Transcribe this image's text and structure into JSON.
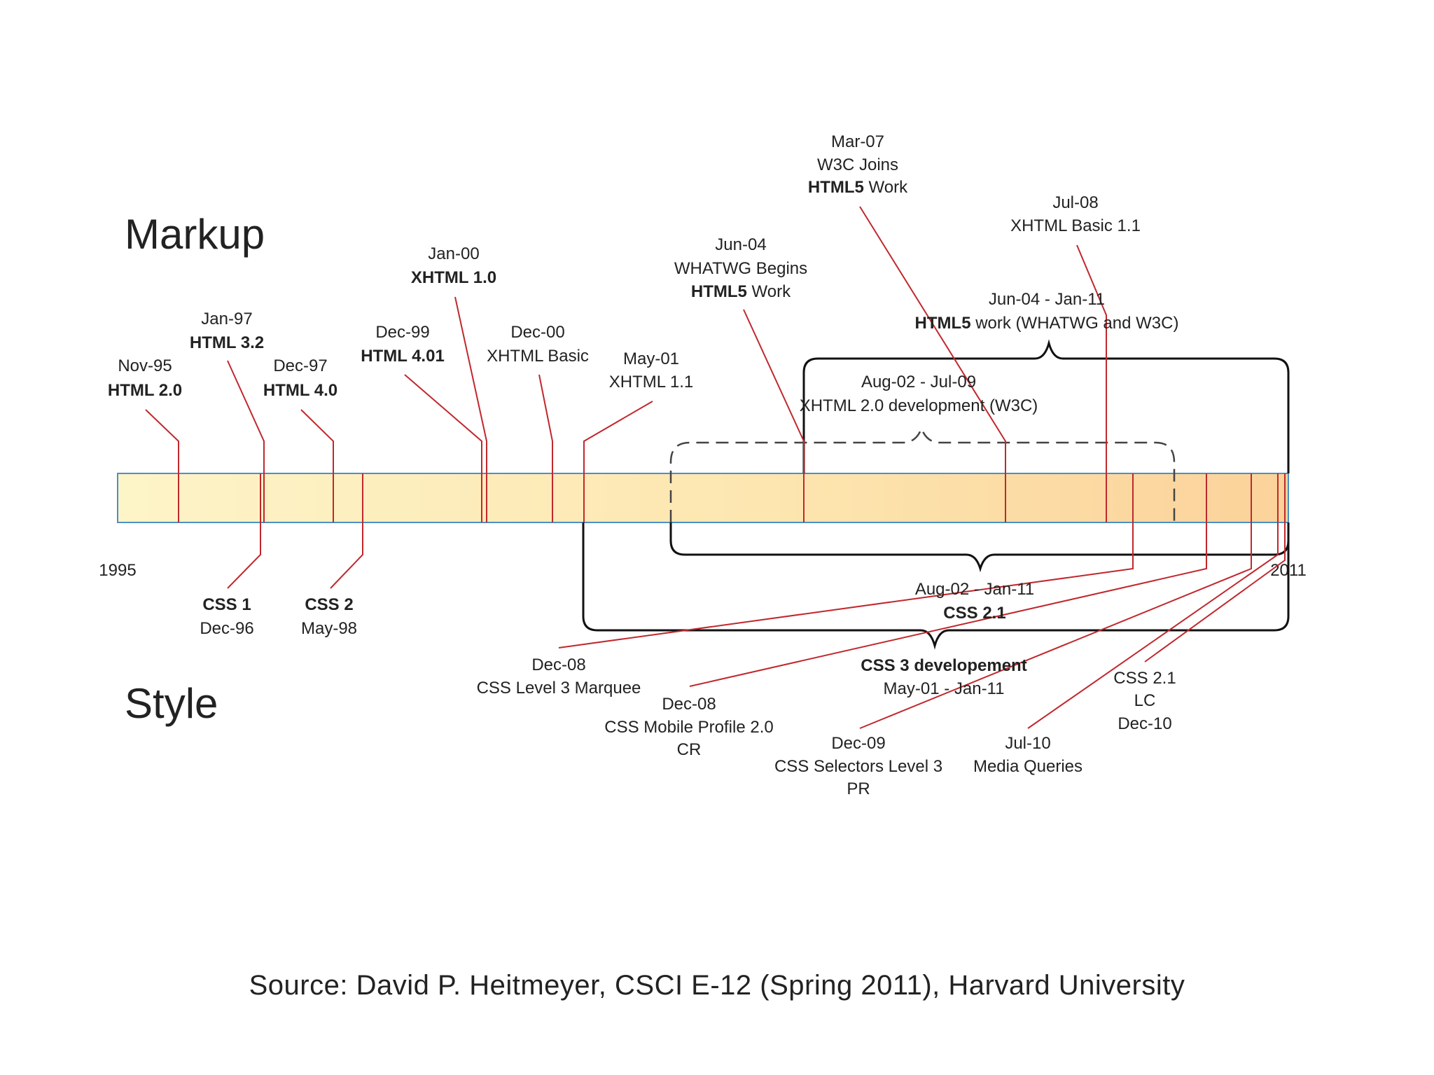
{
  "headings": {
    "markup": "Markup",
    "style": "Style"
  },
  "axis": {
    "start": "1995",
    "end": "2011"
  },
  "source": "Source: David P. Heitmeyer, CSCI E-12 (Spring 2011), Harvard University",
  "markup_events": [
    {
      "date": "Nov-95",
      "name_bold": "HTML 2.0",
      "name_rest": ""
    },
    {
      "date": "Jan-97",
      "name_bold": "HTML 3.2",
      "name_rest": ""
    },
    {
      "date": "Dec-97",
      "name_bold": "HTML 4.0",
      "name_rest": ""
    },
    {
      "date": "Dec-99",
      "name_bold": "HTML 4.01",
      "name_rest": ""
    },
    {
      "date": "Jan-00",
      "name_bold": "XHTML 1.0",
      "name_rest": ""
    },
    {
      "date": "Dec-00",
      "name_bold": "",
      "name_rest": "XHTML Basic"
    },
    {
      "date": "May-01",
      "name_bold": "",
      "name_rest": "XHTML 1.1"
    },
    {
      "date": "Jun-04",
      "line2": "WHATWG Begins",
      "name_bold": "HTML5",
      "name_rest": " Work"
    },
    {
      "date": "Mar-07",
      "line2": "W3C Joins",
      "name_bold": "HTML5",
      "name_rest": " Work"
    },
    {
      "date": "Jul-08",
      "name_bold": "",
      "name_rest": "XHTML Basic 1.1"
    }
  ],
  "markup_spans": [
    {
      "range": "Jun-04 - Jan-11",
      "name_bold": "HTML5",
      "name_rest": " work (WHATWG and W3C)"
    },
    {
      "range": "Aug-02 - Jul-09",
      "name_bold": "",
      "name_rest": "XHTML 2.0 development (W3C)"
    }
  ],
  "style_events": [
    {
      "name_bold": "CSS 1",
      "date": "Dec-96"
    },
    {
      "name_bold": "CSS 2",
      "date": "May-98"
    },
    {
      "date": "Dec-08",
      "lines": [
        "CSS Level 3 Marquee"
      ]
    },
    {
      "date": "Dec-08",
      "lines": [
        "CSS Mobile Profile 2.0",
        "CR"
      ]
    },
    {
      "date": "Dec-09",
      "lines": [
        "CSS Selectors Level 3",
        "PR"
      ]
    },
    {
      "date": "Jul-10",
      "lines": [
        "Media Queries"
      ]
    },
    {
      "lines": [
        "CSS 2.1",
        "LC"
      ],
      "date": "Dec-10"
    }
  ],
  "style_spans": [
    {
      "range": "Aug-02 - Jan-11",
      "name_bold": "CSS 2.1"
    },
    {
      "name_bold": "CSS 3 developement",
      "range": "May-01 - Jan-11"
    }
  ]
}
